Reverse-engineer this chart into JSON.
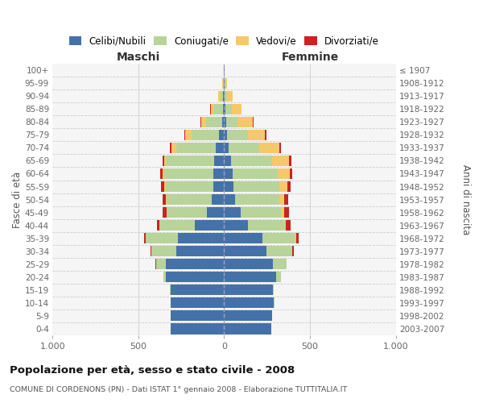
{
  "age_groups": [
    "0-4",
    "5-9",
    "10-14",
    "15-19",
    "20-24",
    "25-29",
    "30-34",
    "35-39",
    "40-44",
    "45-49",
    "50-54",
    "55-59",
    "60-64",
    "65-69",
    "70-74",
    "75-79",
    "80-84",
    "85-89",
    "90-94",
    "95-99",
    "100+"
  ],
  "birth_years": [
    "2003-2007",
    "1998-2002",
    "1993-1997",
    "1988-1992",
    "1983-1987",
    "1978-1982",
    "1973-1977",
    "1968-1972",
    "1963-1967",
    "1958-1962",
    "1953-1957",
    "1948-1952",
    "1943-1947",
    "1938-1942",
    "1933-1937",
    "1928-1932",
    "1923-1927",
    "1918-1922",
    "1913-1917",
    "1908-1912",
    "≤ 1907"
  ],
  "male_celibi": [
    310,
    310,
    310,
    310,
    340,
    340,
    280,
    270,
    170,
    100,
    70,
    65,
    65,
    60,
    50,
    28,
    12,
    8,
    5,
    3,
    2
  ],
  "male_coniugati": [
    1,
    1,
    2,
    5,
    14,
    58,
    145,
    185,
    205,
    235,
    265,
    280,
    285,
    278,
    228,
    162,
    92,
    52,
    18,
    5,
    0
  ],
  "male_vedovi": [
    0,
    0,
    0,
    0,
    0,
    0,
    1,
    1,
    1,
    2,
    3,
    5,
    10,
    10,
    28,
    38,
    30,
    18,
    10,
    5,
    0
  ],
  "male_divorziati": [
    0,
    0,
    0,
    0,
    0,
    2,
    5,
    10,
    15,
    22,
    20,
    18,
    14,
    10,
    8,
    5,
    2,
    2,
    0,
    0,
    0
  ],
  "female_nubili": [
    275,
    280,
    290,
    285,
    305,
    285,
    245,
    225,
    140,
    95,
    62,
    52,
    48,
    38,
    28,
    18,
    12,
    8,
    5,
    2,
    2
  ],
  "female_coniugate": [
    1,
    1,
    2,
    5,
    24,
    78,
    152,
    190,
    215,
    235,
    258,
    270,
    265,
    242,
    178,
    120,
    68,
    35,
    12,
    4,
    0
  ],
  "female_vedove": [
    0,
    0,
    0,
    0,
    0,
    1,
    2,
    3,
    5,
    18,
    28,
    48,
    68,
    97,
    115,
    100,
    85,
    58,
    32,
    10,
    0
  ],
  "female_divorziate": [
    0,
    0,
    0,
    0,
    0,
    2,
    5,
    15,
    28,
    28,
    24,
    19,
    17,
    14,
    10,
    8,
    5,
    2,
    1,
    0,
    0
  ],
  "color_celibi": "#4472a8",
  "color_coniugati": "#b8d49a",
  "color_vedovi": "#f5c86a",
  "color_divorziati": "#cc2222",
  "legend_labels": [
    "Celibi/Nubili",
    "Coniugati/e",
    "Vedovi/e",
    "Divorziati/e"
  ],
  "title": "Popolazione per età, sesso e stato civile - 2008",
  "subtitle": "COMUNE DI CORDENONS (PN) - Dati ISTAT 1° gennaio 2008 - Elaborazione TUTTITALIA.IT",
  "ylabel_left": "Fasce di età",
  "ylabel_right": "Anni di nascita",
  "maschi_label": "Maschi",
  "femmine_label": "Femmine",
  "xlim": 1000,
  "bg_color": "#ffffff",
  "plot_bg": "#f5f5f5",
  "grid_color": "#cccccc"
}
